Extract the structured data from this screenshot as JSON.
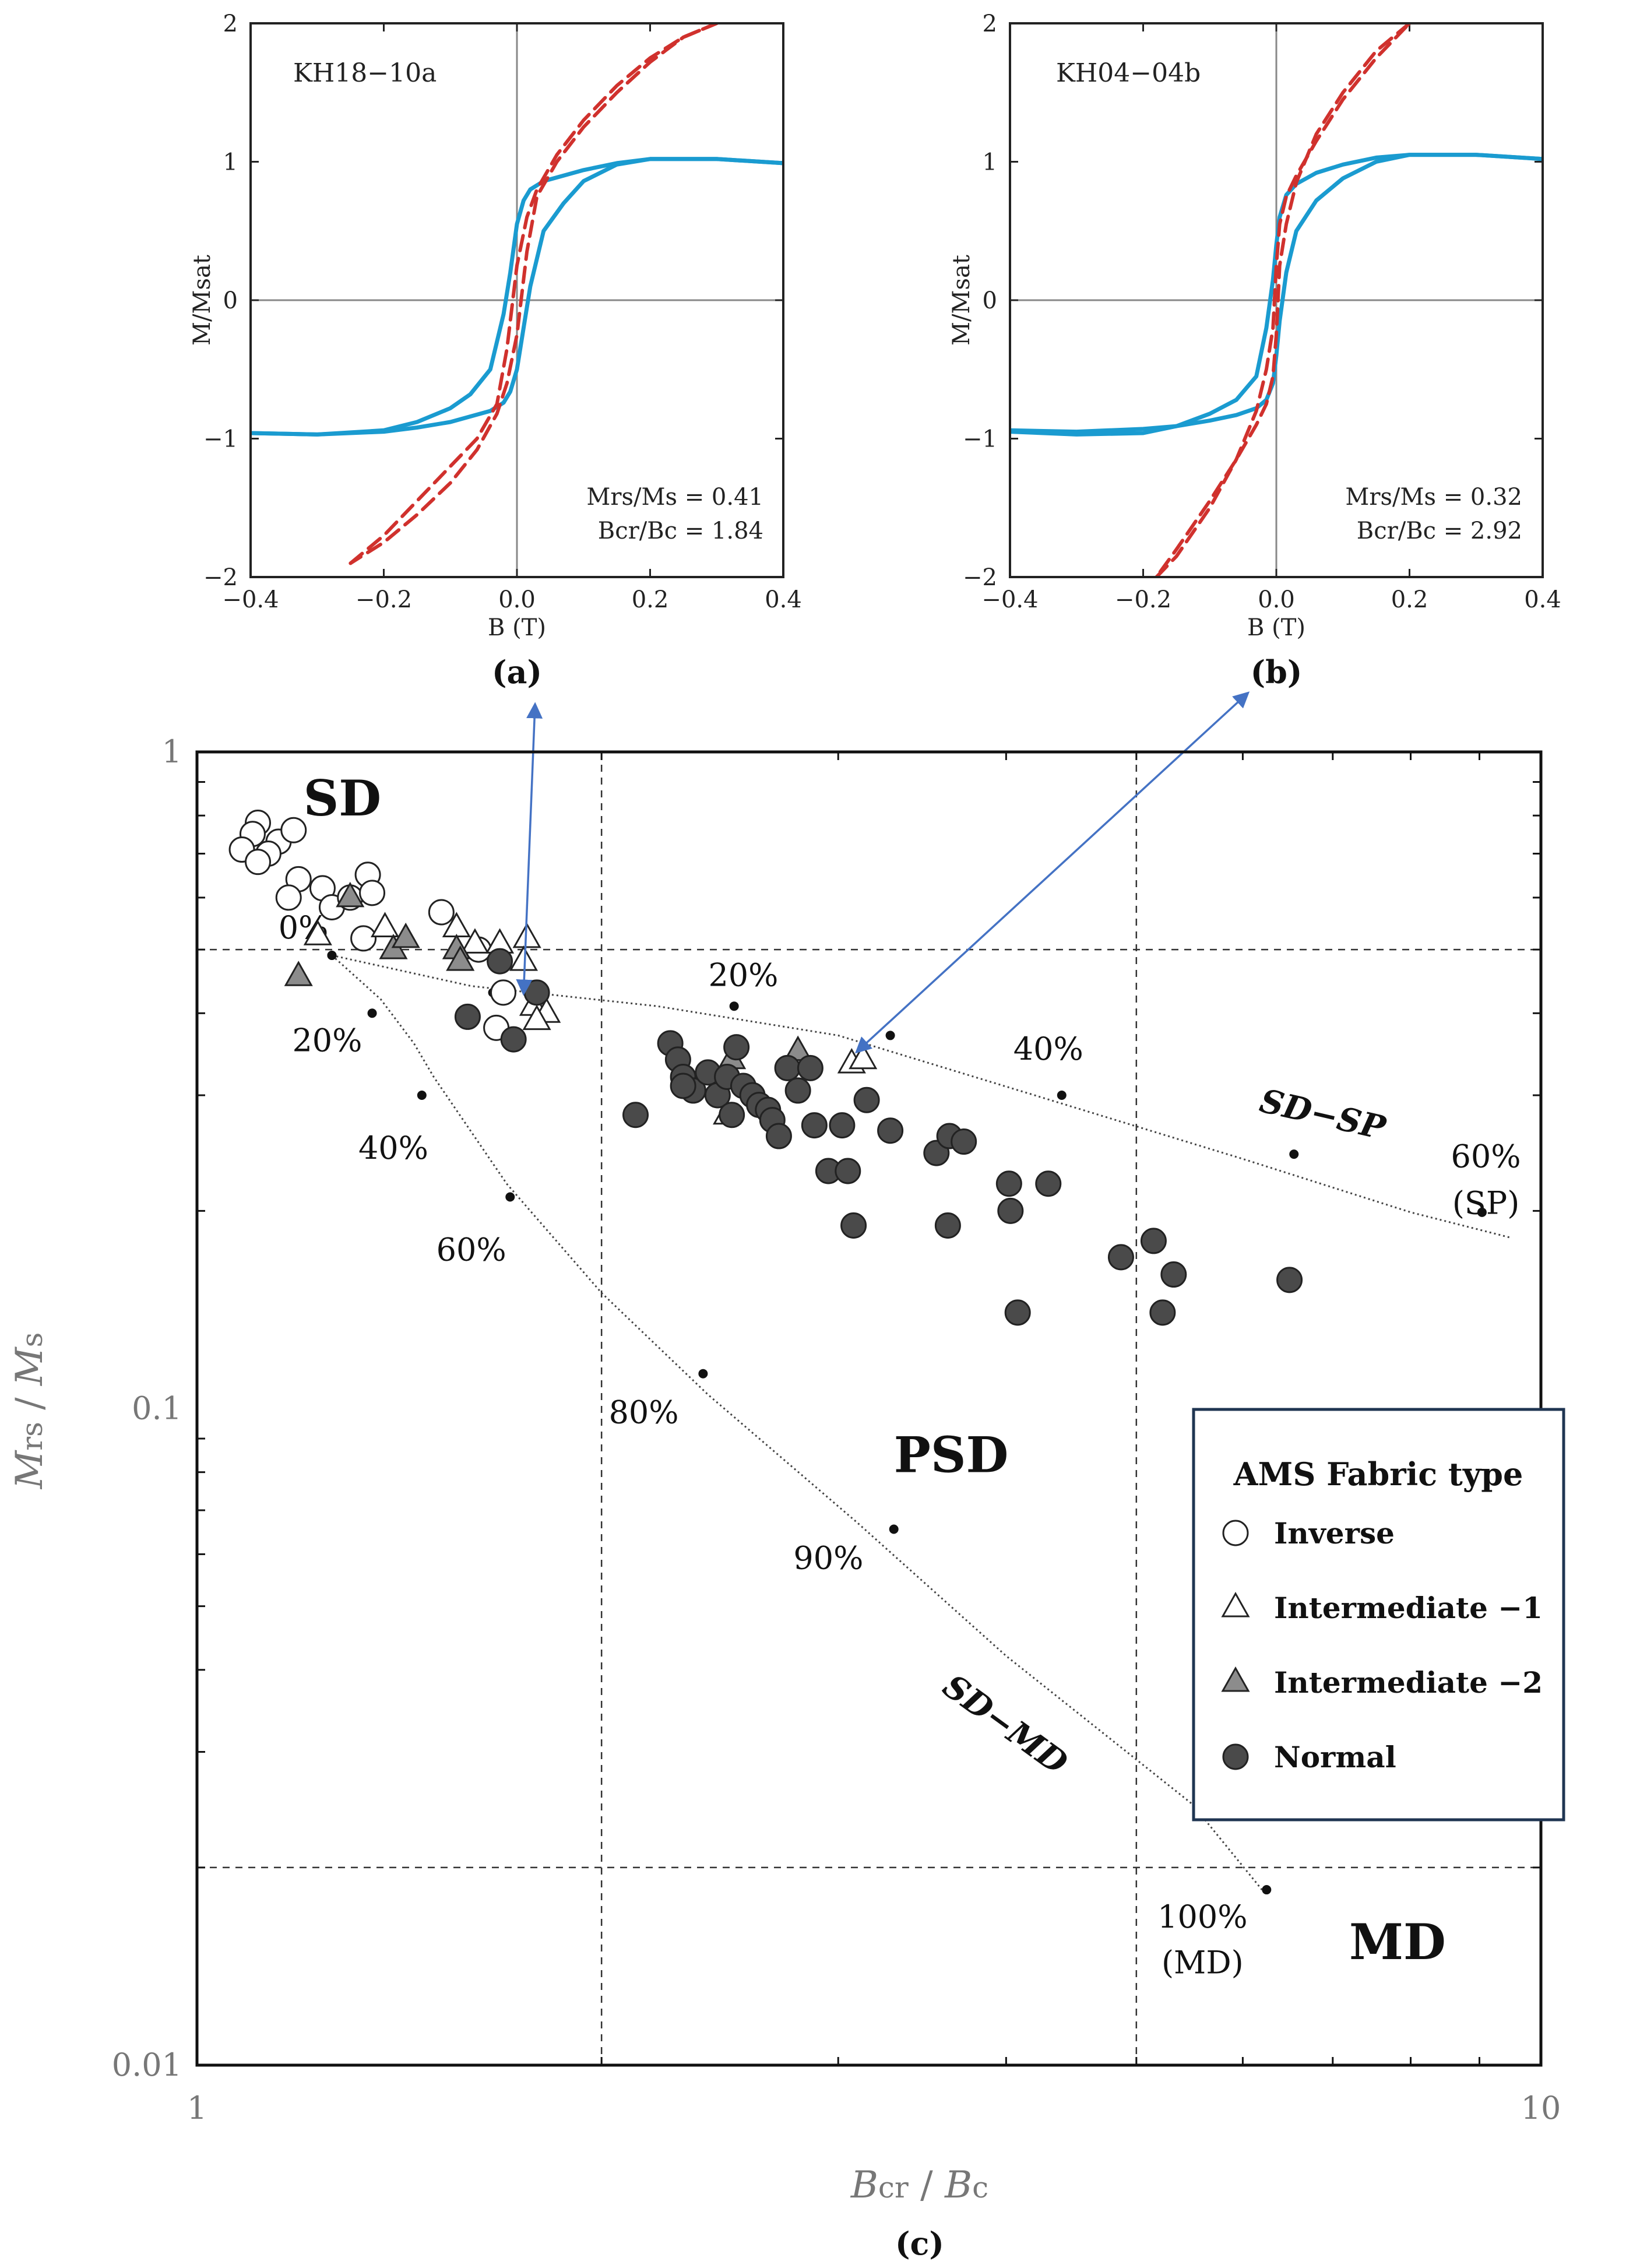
{
  "chart_data": [
    {
      "id": "a",
      "type": "line",
      "panel_label": "(a)",
      "sample": "KH18−10a",
      "xlabel": "B (T)",
      "ylabel": "M/Msat",
      "xlim": [
        -0.4,
        0.4
      ],
      "ylim": [
        -2,
        2
      ],
      "x_ticks": [
        -0.4,
        -0.2,
        0.0,
        0.2,
        0.4
      ],
      "x_tick_labels": [
        "−0.4",
        "−0.2",
        "0.0",
        "0.2",
        "0.4"
      ],
      "y_ticks": [
        -2,
        -1,
        0,
        1,
        2
      ],
      "y_tick_labels": [
        "−2",
        "−1",
        "0",
        "1",
        "2"
      ],
      "stats": [
        "Mrs/Ms  =  0.41",
        "Bcr/Bc  =  1.84"
      ],
      "colors": {
        "corrected": "#1a9bd0",
        "uncorrected": "#d0312d"
      },
      "series": [
        {
          "style": "solid",
          "x": [
            -0.4,
            -0.3,
            -0.2,
            -0.15,
            -0.1,
            -0.07,
            -0.04,
            -0.02,
            -0.01,
            0.0,
            0.01,
            0.02,
            0.04,
            0.07,
            0.1,
            0.15,
            0.2,
            0.3,
            0.4
          ],
          "y": [
            -0.96,
            -0.97,
            -0.94,
            -0.88,
            -0.78,
            -0.68,
            -0.5,
            -0.1,
            0.2,
            0.55,
            0.72,
            0.8,
            0.86,
            0.9,
            0.94,
            0.99,
            1.02,
            1.02,
            0.99
          ]
        },
        {
          "style": "solid",
          "x": [
            0.4,
            0.3,
            0.2,
            0.15,
            0.1,
            0.07,
            0.04,
            0.02,
            0.01,
            0.0,
            -0.01,
            -0.02,
            -0.04,
            -0.07,
            -0.1,
            -0.15,
            -0.2,
            -0.3,
            -0.4
          ],
          "y": [
            0.99,
            1.02,
            1.02,
            0.98,
            0.86,
            0.7,
            0.5,
            0.1,
            -0.2,
            -0.5,
            -0.66,
            -0.74,
            -0.8,
            -0.84,
            -0.88,
            -0.92,
            -0.95,
            -0.97,
            -0.96
          ]
        },
        {
          "style": "dashed",
          "x": [
            -0.25,
            -0.2,
            -0.15,
            -0.1,
            -0.06,
            -0.03,
            -0.015,
            0.0,
            0.015,
            0.03,
            0.06,
            0.1,
            0.15,
            0.2,
            0.25,
            0.3
          ],
          "y": [
            -1.9,
            -1.7,
            -1.45,
            -1.2,
            -1.0,
            -0.75,
            -0.35,
            0.25,
            0.6,
            0.8,
            1.05,
            1.3,
            1.55,
            1.75,
            1.9,
            2.0
          ]
        },
        {
          "style": "dashed",
          "x": [
            0.3,
            0.25,
            0.2,
            0.15,
            0.1,
            0.06,
            0.03,
            0.015,
            0.0,
            -0.015,
            -0.03,
            -0.06,
            -0.1,
            -0.15,
            -0.2,
            -0.25
          ],
          "y": [
            2.0,
            1.9,
            1.72,
            1.5,
            1.25,
            1.0,
            0.75,
            0.35,
            -0.25,
            -0.6,
            -0.82,
            -1.08,
            -1.32,
            -1.55,
            -1.75,
            -1.9
          ]
        }
      ]
    },
    {
      "id": "b",
      "type": "line",
      "panel_label": "(b)",
      "sample": "KH04−04b",
      "xlabel": "B (T)",
      "ylabel": "M/Msat",
      "xlim": [
        -0.4,
        0.4
      ],
      "ylim": [
        -2,
        2
      ],
      "x_ticks": [
        -0.4,
        -0.2,
        0.0,
        0.2,
        0.4
      ],
      "x_tick_labels": [
        "−0.4",
        "−0.2",
        "0.0",
        "0.2",
        "0.4"
      ],
      "y_ticks": [
        -2,
        -1,
        0,
        1,
        2
      ],
      "y_tick_labels": [
        "−2",
        "−1",
        "0",
        "1",
        "2"
      ],
      "stats": [
        "Mrs/Ms  =  0.32",
        "Bcr/Bc  =  2.92"
      ],
      "colors": {
        "corrected": "#1a9bd0",
        "uncorrected": "#d0312d"
      },
      "series": [
        {
          "style": "solid",
          "x": [
            -0.4,
            -0.3,
            -0.2,
            -0.15,
            -0.1,
            -0.06,
            -0.03,
            -0.015,
            -0.005,
            0.0,
            0.005,
            0.015,
            0.03,
            0.06,
            0.1,
            0.15,
            0.2,
            0.3,
            0.4
          ],
          "y": [
            -0.95,
            -0.97,
            -0.96,
            -0.91,
            -0.82,
            -0.72,
            -0.55,
            -0.2,
            0.15,
            0.4,
            0.6,
            0.76,
            0.84,
            0.92,
            0.98,
            1.03,
            1.05,
            1.05,
            1.02
          ]
        },
        {
          "style": "solid",
          "x": [
            0.4,
            0.3,
            0.2,
            0.15,
            0.1,
            0.06,
            0.03,
            0.015,
            0.005,
            0.0,
            -0.005,
            -0.015,
            -0.03,
            -0.06,
            -0.1,
            -0.15,
            -0.2,
            -0.3,
            -0.4
          ],
          "y": [
            1.02,
            1.05,
            1.05,
            1.0,
            0.88,
            0.72,
            0.5,
            0.2,
            -0.15,
            -0.4,
            -0.6,
            -0.72,
            -0.78,
            -0.83,
            -0.87,
            -0.91,
            -0.93,
            -0.95,
            -0.94
          ]
        },
        {
          "style": "dashed",
          "x": [
            -0.18,
            -0.15,
            -0.1,
            -0.06,
            -0.03,
            -0.015,
            -0.005,
            0.0,
            0.005,
            0.015,
            0.03,
            0.06,
            0.1,
            0.15,
            0.2
          ],
          "y": [
            -2.0,
            -1.85,
            -1.5,
            -1.15,
            -0.8,
            -0.5,
            -0.2,
            0.25,
            0.55,
            0.75,
            0.9,
            1.15,
            1.45,
            1.75,
            2.0
          ]
        },
        {
          "style": "dashed",
          "x": [
            0.2,
            0.15,
            0.1,
            0.06,
            0.03,
            0.015,
            0.005,
            0.0,
            -0.005,
            -0.015,
            -0.03,
            -0.06,
            -0.1,
            -0.15,
            -0.18
          ],
          "y": [
            2.0,
            1.8,
            1.5,
            1.2,
            0.85,
            0.55,
            0.25,
            -0.25,
            -0.55,
            -0.75,
            -0.9,
            -1.15,
            -1.45,
            -1.8,
            -2.0
          ]
        }
      ]
    },
    {
      "id": "c",
      "type": "scatter",
      "panel_label": "(c)",
      "xlabel_main": "B",
      "xlabel_sub": "cr",
      "xlabel_sep": " / ",
      "xlabel_main2": "B",
      "xlabel_sub2": "c",
      "ylabel_main": "M",
      "ylabel_sub": "rs",
      "ylabel_sep": " / ",
      "ylabel_main2": "M",
      "ylabel_sub2": "s",
      "x_scale": "log",
      "y_scale": "log",
      "xlim": [
        1,
        10
      ],
      "ylim": [
        0.01,
        1
      ],
      "x_ticks": [
        1,
        10
      ],
      "x_tick_labels": [
        "1",
        "10"
      ],
      "y_ticks": [
        0.01,
        0.1,
        1
      ],
      "y_tick_labels": [
        "0.01",
        "0.1",
        "1"
      ],
      "grid_lines": {
        "x": [
          2,
          5
        ],
        "y": [
          0.02,
          0.5
        ]
      },
      "region_labels": [
        {
          "text": "SD",
          "x": 1.2,
          "y": 0.8
        },
        {
          "text": "PSD",
          "x": 3.3,
          "y": 0.08
        },
        {
          "text": "MD",
          "x": 7.2,
          "y": 0.0145
        }
      ],
      "sd_sp": {
        "name": "SD−SP",
        "curve": [
          [
            1.26,
            0.49
          ],
          [
            1.6,
            0.44
          ],
          [
            2.2,
            0.41
          ],
          [
            3.0,
            0.37
          ],
          [
            4.2,
            0.3
          ],
          [
            6.0,
            0.24
          ],
          [
            8.0,
            0.199
          ],
          [
            9.5,
            0.182
          ]
        ],
        "markers": [
          [
            1.26,
            0.49
          ],
          [
            1.66,
            0.43
          ],
          [
            2.51,
            0.41
          ],
          [
            3.28,
            0.37
          ],
          [
            4.4,
            0.3
          ],
          [
            6.55,
            0.244
          ],
          [
            9.04,
            0.199
          ]
        ],
        "labels": [
          {
            "text": "0%",
            "x": 1.2,
            "y": 0.52
          },
          {
            "text": "20%",
            "x": 2.55,
            "y": 0.44
          },
          {
            "text": "40%",
            "x": 4.3,
            "y": 0.34
          },
          {
            "text": "60%",
            "x": 9.1,
            "y": 0.233
          },
          {
            "text": "(SP)",
            "x": 9.1,
            "y": 0.198
          }
        ]
      },
      "sd_md": {
        "name": "SD−MD",
        "curve": [
          [
            1.26,
            0.49
          ],
          [
            1.37,
            0.42
          ],
          [
            1.45,
            0.36
          ],
          [
            1.5,
            0.32
          ],
          [
            1.7,
            0.22
          ],
          [
            2.0,
            0.15
          ],
          [
            2.4,
            0.105
          ],
          [
            3.1,
            0.067
          ],
          [
            4.0,
            0.042
          ],
          [
            5.5,
            0.025
          ],
          [
            6.2,
            0.0185
          ]
        ],
        "markers": [
          [
            1.26,
            0.49
          ],
          [
            1.35,
            0.4
          ],
          [
            1.47,
            0.3
          ],
          [
            1.71,
            0.21
          ],
          [
            2.38,
            0.113
          ],
          [
            3.3,
            0.0655
          ],
          [
            6.25,
            0.0185
          ]
        ],
        "labels": [
          {
            "text": "20%",
            "x": 1.25,
            "y": 0.35
          },
          {
            "text": "40%",
            "x": 1.4,
            "y": 0.24
          },
          {
            "text": "60%",
            "x": 1.6,
            "y": 0.168
          },
          {
            "text": "80%",
            "x": 2.15,
            "y": 0.095
          },
          {
            "text": "90%",
            "x": 2.95,
            "y": 0.057
          },
          {
            "text": "100%",
            "x": 5.6,
            "y": 0.0162
          },
          {
            "text": "(MD)",
            "x": 5.6,
            "y": 0.0138
          }
        ]
      },
      "legend": {
        "title": "AMS Fabric type",
        "position": "right",
        "items": [
          {
            "label": "Inverse",
            "marker": "circle-open"
          },
          {
            "label": "Intermediate −1",
            "marker": "triangle-open"
          },
          {
            "label": "Intermediate −2",
            "marker": "triangle-gray"
          },
          {
            "label": "Normal",
            "marker": "circle-dark"
          }
        ]
      },
      "annotation_arrows": [
        {
          "from": [
            1.75,
            0.43
          ],
          "to": "(a)"
        },
        {
          "from": [
            3.1,
            0.35
          ],
          "to": "(b)"
        }
      ],
      "colors": {
        "open_fill": "#ffffff",
        "gray_fill": "#8c8c8c",
        "dark_fill": "#4a4a4a",
        "arrow": "#4472c4"
      },
      "series": [
        {
          "name": "Inverse",
          "marker": "circle-open",
          "points": [
            [
              1.11,
              0.78
            ],
            [
              1.15,
              0.73
            ],
            [
              1.1,
              0.75
            ],
            [
              1.13,
              0.7
            ],
            [
              1.08,
              0.71
            ],
            [
              1.11,
              0.68
            ],
            [
              1.18,
              0.76
            ],
            [
              1.19,
              0.64
            ],
            [
              1.17,
              0.6
            ],
            [
              1.24,
              0.62
            ],
            [
              1.26,
              0.58
            ],
            [
              1.3,
              0.6
            ],
            [
              1.34,
              0.65
            ],
            [
              1.35,
              0.61
            ],
            [
              1.52,
              0.57
            ],
            [
              1.33,
              0.52
            ],
            [
              1.69,
              0.43
            ],
            [
              1.67,
              0.38
            ],
            [
              1.62,
              0.5
            ]
          ]
        },
        {
          "name": "Intermediate −1",
          "marker": "triangle-open",
          "points": [
            [
              1.23,
              0.525
            ],
            [
              1.38,
              0.54
            ],
            [
              1.56,
              0.54
            ],
            [
              1.61,
              0.51
            ],
            [
              1.68,
              0.51
            ],
            [
              1.76,
              0.52
            ],
            [
              1.75,
              0.48
            ],
            [
              1.78,
              0.41
            ],
            [
              1.82,
              0.4
            ],
            [
              1.79,
              0.39
            ],
            [
              3.07,
              0.335
            ],
            [
              3.13,
              0.34
            ],
            [
              2.48,
              0.28
            ]
          ]
        },
        {
          "name": "Intermediate −2",
          "marker": "triangle-gray",
          "points": [
            [
              1.19,
              0.455
            ],
            [
              1.3,
              0.6
            ],
            [
              1.4,
              0.5
            ],
            [
              1.43,
              0.52
            ],
            [
              1.56,
              0.5
            ],
            [
              1.57,
              0.48
            ],
            [
              2.5,
              0.34
            ],
            [
              2.8,
              0.35
            ]
          ]
        },
        {
          "name": "Normal",
          "marker": "circle-dark",
          "points": [
            [
              1.59,
              0.395
            ],
            [
              1.68,
              0.48
            ],
            [
              1.72,
              0.365
            ],
            [
              1.79,
              0.43
            ],
            [
              2.25,
              0.36
            ],
            [
              2.28,
              0.34
            ],
            [
              2.3,
              0.32
            ],
            [
              2.34,
              0.305
            ],
            [
              2.4,
              0.325
            ],
            [
              2.44,
              0.3
            ],
            [
              2.48,
              0.32
            ],
            [
              2.52,
              0.355
            ],
            [
              2.55,
              0.31
            ],
            [
              2.59,
              0.3
            ],
            [
              2.62,
              0.29
            ],
            [
              2.5,
              0.28
            ],
            [
              2.66,
              0.285
            ],
            [
              2.68,
              0.275
            ],
            [
              2.71,
              0.26
            ],
            [
              2.75,
              0.33
            ],
            [
              2.8,
              0.305
            ],
            [
              2.86,
              0.33
            ],
            [
              2.3,
              0.31
            ],
            [
              2.12,
              0.28
            ],
            [
              2.88,
              0.27
            ],
            [
              2.95,
              0.23
            ],
            [
              3.02,
              0.27
            ],
            [
              3.05,
              0.23
            ],
            [
              3.08,
              0.19
            ],
            [
              3.15,
              0.295
            ],
            [
              3.28,
              0.265
            ],
            [
              3.55,
              0.245
            ],
            [
              3.63,
              0.26
            ],
            [
              3.72,
              0.255
            ],
            [
              3.62,
              0.19
            ],
            [
              4.02,
              0.22
            ],
            [
              4.03,
              0.2
            ],
            [
              4.3,
              0.22
            ],
            [
              4.08,
              0.14
            ],
            [
              4.87,
              0.17
            ],
            [
              5.15,
              0.18
            ],
            [
              5.23,
              0.14
            ],
            [
              5.33,
              0.16
            ],
            [
              6.5,
              0.157
            ]
          ]
        }
      ]
    }
  ]
}
